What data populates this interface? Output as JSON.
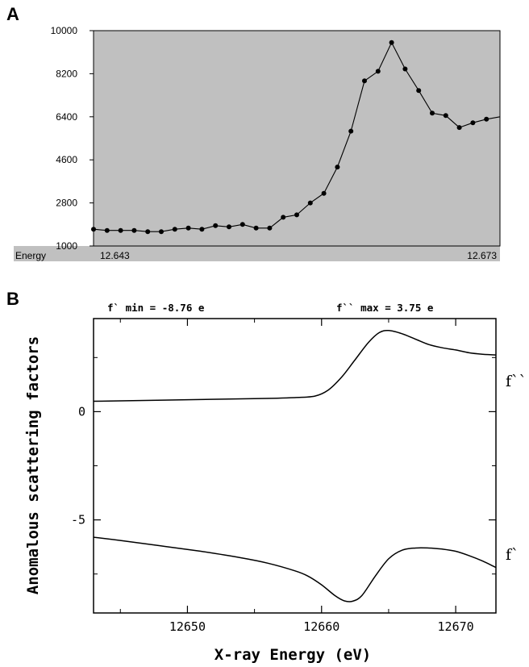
{
  "chart_data": [
    {
      "panel_label": "A",
      "type": "line",
      "x_tick_labels": [
        "12.643",
        "12.673"
      ],
      "x_axis_caption": "Energy",
      "xlim": [
        12.643,
        12.673
      ],
      "ylim": [
        1000,
        10000
      ],
      "y_ticks": [
        1000,
        2800,
        4600,
        6400,
        8200,
        10000
      ],
      "grid": false,
      "background": "#c0c0c0",
      "line_color": "#000000",
      "x": [
        12.643,
        12.644,
        12.645,
        12.646,
        12.647,
        12.648,
        12.649,
        12.65,
        12.651,
        12.652,
        12.653,
        12.654,
        12.655,
        12.656,
        12.657,
        12.658,
        12.659,
        12.66,
        12.661,
        12.662,
        12.663,
        12.664,
        12.665,
        12.666,
        12.667,
        12.668,
        12.669,
        12.67,
        12.671,
        12.672,
        12.673
      ],
      "values": [
        1700,
        1650,
        1650,
        1650,
        1600,
        1600,
        1700,
        1750,
        1700,
        1850,
        1800,
        1900,
        1750,
        1750,
        2200,
        2300,
        2800,
        3200,
        4300,
        5800,
        7900,
        8300,
        9500,
        8400,
        7500,
        6550,
        6450,
        5950,
        6150,
        6300,
        6400
      ]
    },
    {
      "panel_label": "B",
      "type": "line",
      "xlabel": "X-ray Energy (eV)",
      "ylabel": "Anomalous scattering factors",
      "xlim": [
        12643,
        12673
      ],
      "ylim": [
        -9.3,
        4.3
      ],
      "x_ticks": [
        12650,
        12660,
        12670
      ],
      "y_ticks": [
        0,
        -5
      ],
      "grid": false,
      "annotations": [
        "f` min = -8.76   e",
        "f`` max = 3.75   e"
      ],
      "series": [
        {
          "name": "f``",
          "x": [
            12643,
            12645,
            12650,
            12655,
            12658,
            12659.5,
            12660.5,
            12661.5,
            12662.5,
            12663.5,
            12664.3,
            12665,
            12666,
            12667,
            12668,
            12669,
            12670,
            12671,
            12672,
            12673
          ],
          "values": [
            0.48,
            0.5,
            0.55,
            0.6,
            0.65,
            0.72,
            1.0,
            1.6,
            2.4,
            3.2,
            3.65,
            3.75,
            3.6,
            3.35,
            3.1,
            2.95,
            2.85,
            2.72,
            2.65,
            2.62
          ]
        },
        {
          "name": "f`",
          "x": [
            12643,
            12645,
            12648,
            12651,
            12654,
            12656,
            12658,
            12659,
            12660,
            12661,
            12661.7,
            12662.3,
            12663,
            12664,
            12665,
            12666,
            12667,
            12668,
            12669,
            12670,
            12671,
            12672,
            12673
          ],
          "values": [
            -5.8,
            -5.95,
            -6.2,
            -6.45,
            -6.75,
            -7.0,
            -7.35,
            -7.6,
            -8.0,
            -8.5,
            -8.74,
            -8.76,
            -8.5,
            -7.6,
            -6.8,
            -6.4,
            -6.3,
            -6.3,
            -6.35,
            -6.45,
            -6.65,
            -6.9,
            -7.2
          ]
        }
      ]
    }
  ]
}
